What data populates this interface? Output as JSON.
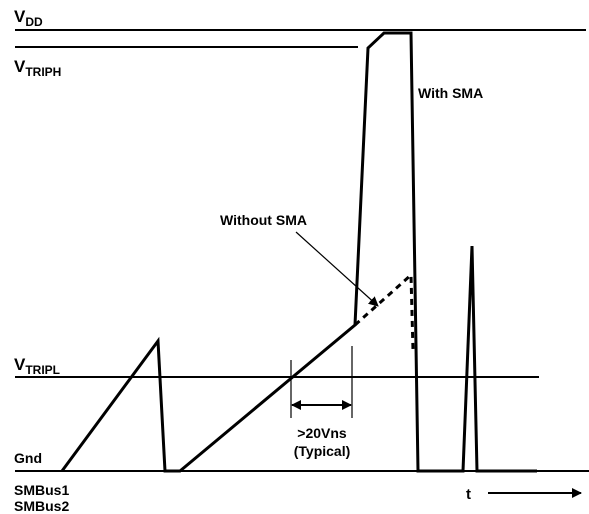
{
  "labels": {
    "vdd_main": "V",
    "vdd_sub": "DD",
    "vtriph_main": "V",
    "vtriph_sub": "TRIPH",
    "vtripl_main": "V",
    "vtripl_sub": "TRIPL",
    "gnd": "Gnd",
    "with_sma": "With SMA",
    "without_sma": "Without SMA",
    "timing_value": ">20Vns",
    "timing_note": "(Typical)",
    "bus1": "SMBus1",
    "bus2": "SMBus2",
    "time_axis": "t"
  }
}
